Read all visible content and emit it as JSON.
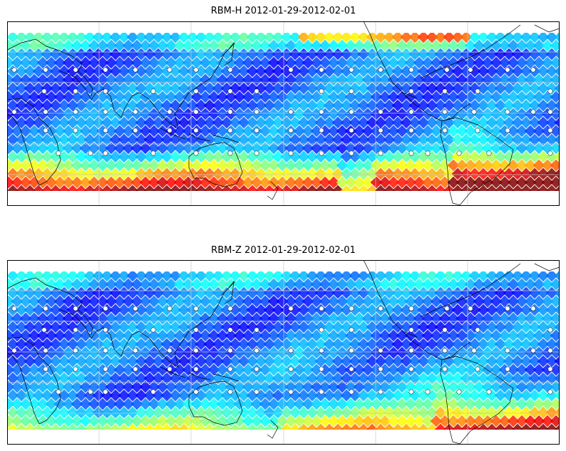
{
  "panels": [
    {
      "title": "RBM-H 2012-01-29-2012-02-01",
      "field": "H",
      "colormap": "jet",
      "gridlines": true,
      "coastlines": true,
      "station_markers": true
    },
    {
      "title": "RBM-Z 2012-01-29-2012-02-01",
      "field": "Z",
      "colormap": "jet",
      "gridlines": true,
      "coastlines": true,
      "station_markers": true
    }
  ],
  "colors": {
    "frame": "#000000",
    "grid": "#c8c8c8",
    "coast": "#000000",
    "low": "#6464ff",
    "mid": "#60ffff",
    "high": "#ff5050"
  }
}
